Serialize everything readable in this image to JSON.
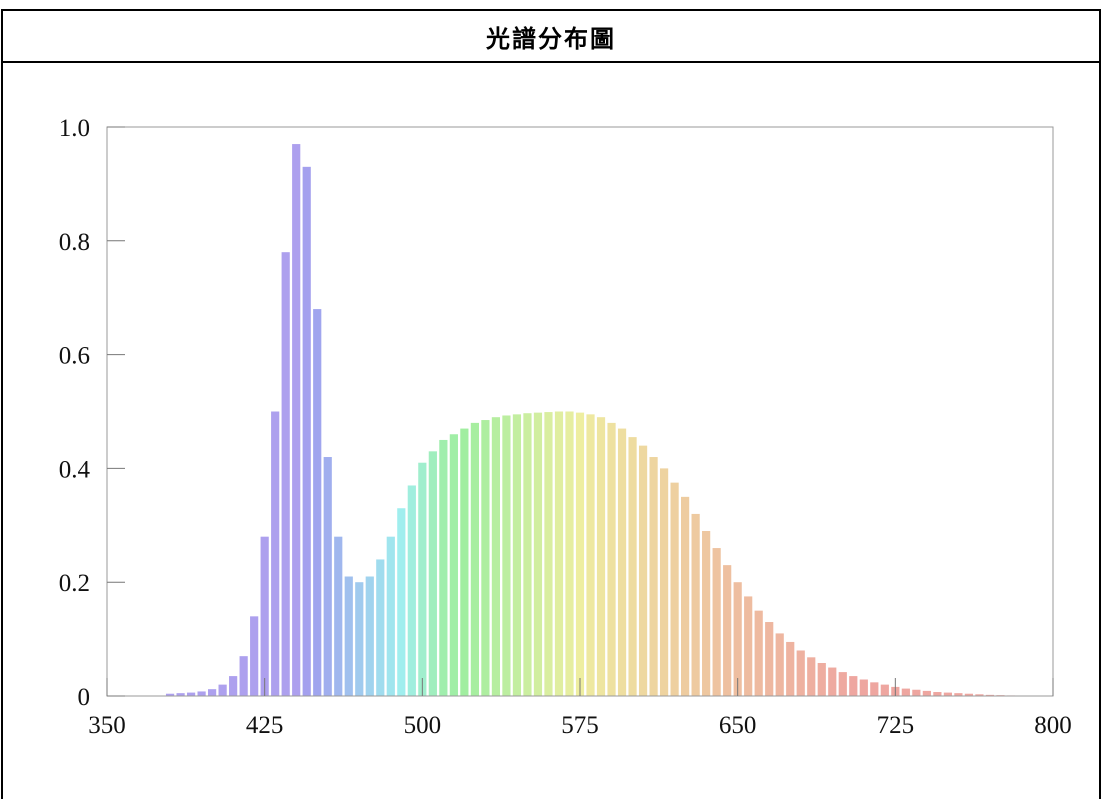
{
  "title": "光譜分布圖",
  "chart_data": {
    "type": "bar",
    "title": "光譜分布圖",
    "xlabel": "",
    "ylabel": "",
    "xlim": [
      350,
      800
    ],
    "ylim": [
      0,
      1.0
    ],
    "x_ticks": [
      "350",
      "425",
      "500",
      "575",
      "650",
      "725",
      "800"
    ],
    "y_ticks": [
      "0",
      "0.2",
      "0.4",
      "0.6",
      "0.8",
      "1.0"
    ],
    "grid": false,
    "legend": "none",
    "bar_color": "wavelength-spectrum (violet to red, pastel)",
    "x": [
      380,
      385,
      390,
      395,
      400,
      405,
      410,
      415,
      420,
      425,
      430,
      435,
      440,
      445,
      450,
      455,
      460,
      465,
      470,
      475,
      480,
      485,
      490,
      495,
      500,
      505,
      510,
      515,
      520,
      525,
      530,
      535,
      540,
      545,
      550,
      555,
      560,
      565,
      570,
      575,
      580,
      585,
      590,
      595,
      600,
      605,
      610,
      615,
      620,
      625,
      630,
      635,
      640,
      645,
      650,
      655,
      660,
      665,
      670,
      675,
      680,
      685,
      690,
      695,
      700,
      705,
      710,
      715,
      720,
      725,
      730,
      735,
      740,
      745,
      750,
      755,
      760,
      765,
      770,
      775,
      780
    ],
    "values": [
      0.004,
      0.005,
      0.006,
      0.008,
      0.012,
      0.02,
      0.035,
      0.07,
      0.14,
      0.28,
      0.5,
      0.78,
      0.97,
      0.93,
      0.68,
      0.42,
      0.28,
      0.21,
      0.2,
      0.21,
      0.24,
      0.28,
      0.33,
      0.37,
      0.41,
      0.43,
      0.45,
      0.46,
      0.47,
      0.48,
      0.485,
      0.49,
      0.493,
      0.495,
      0.497,
      0.498,
      0.499,
      0.5,
      0.5,
      0.498,
      0.495,
      0.49,
      0.48,
      0.47,
      0.455,
      0.44,
      0.42,
      0.4,
      0.375,
      0.35,
      0.32,
      0.29,
      0.26,
      0.23,
      0.2,
      0.175,
      0.15,
      0.13,
      0.11,
      0.095,
      0.08,
      0.068,
      0.058,
      0.05,
      0.042,
      0.035,
      0.029,
      0.024,
      0.02,
      0.016,
      0.013,
      0.011,
      0.009,
      0.007,
      0.006,
      0.005,
      0.004,
      0.003,
      0.002,
      0.0015,
      0.001
    ]
  }
}
